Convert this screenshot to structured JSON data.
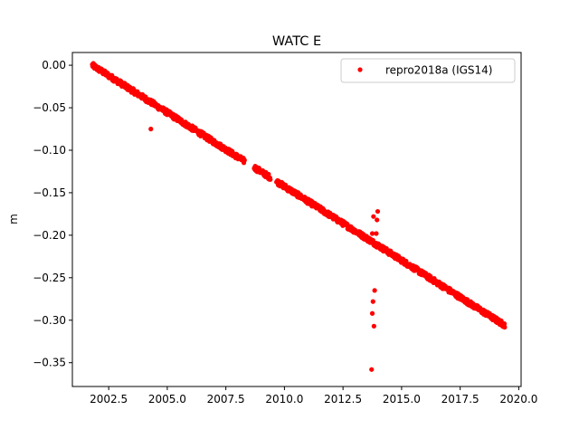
{
  "chart_data": {
    "type": "scatter",
    "title": "WATC E",
    "xlabel": "",
    "ylabel": "m",
    "xlim": [
      2000.95,
      2020.1
    ],
    "ylim": [
      -0.378,
      0.015
    ],
    "xticks": [
      2002.5,
      2005.0,
      2007.5,
      2010.0,
      2012.5,
      2015.0,
      2017.5,
      2020.0
    ],
    "xtick_labels": [
      "2002.5",
      "2005.0",
      "2007.5",
      "2010.0",
      "2012.5",
      "2015.0",
      "2017.5",
      "2020.0"
    ],
    "yticks": [
      0.0,
      -0.05,
      -0.1,
      -0.15,
      -0.2,
      -0.25,
      -0.3,
      -0.35
    ],
    "ytick_labels": [
      "0.00",
      "−0.05",
      "−0.10",
      "−0.15",
      "−0.20",
      "−0.25",
      "−0.30",
      "−0.35"
    ],
    "grid": false,
    "legend_position": "top-right",
    "series": [
      {
        "name": "repro2018a (IGS14)",
        "color": "#ff0000",
        "marker": "circle",
        "trend": {
          "x_start": 2001.8,
          "y_start": 0.0,
          "x_end": 2019.4,
          "y_end": -0.306,
          "noise_amplitude": 0.003
        },
        "gaps": [
          [
            2008.3,
            2008.7
          ],
          [
            2009.4,
            2009.65
          ]
        ],
        "outliers": [
          {
            "x": 2013.72,
            "y": -0.358
          },
          {
            "x": 2013.75,
            "y": -0.292
          },
          {
            "x": 2013.78,
            "y": -0.278
          },
          {
            "x": 2013.82,
            "y": -0.307
          },
          {
            "x": 2013.85,
            "y": -0.265
          },
          {
            "x": 2013.75,
            "y": -0.198
          },
          {
            "x": 2013.8,
            "y": -0.178
          },
          {
            "x": 2013.95,
            "y": -0.182
          },
          {
            "x": 2013.98,
            "y": -0.172
          },
          {
            "x": 2013.92,
            "y": -0.198
          },
          {
            "x": 2014.0,
            "y": -0.21
          },
          {
            "x": 2004.3,
            "y": -0.075
          }
        ]
      }
    ]
  }
}
